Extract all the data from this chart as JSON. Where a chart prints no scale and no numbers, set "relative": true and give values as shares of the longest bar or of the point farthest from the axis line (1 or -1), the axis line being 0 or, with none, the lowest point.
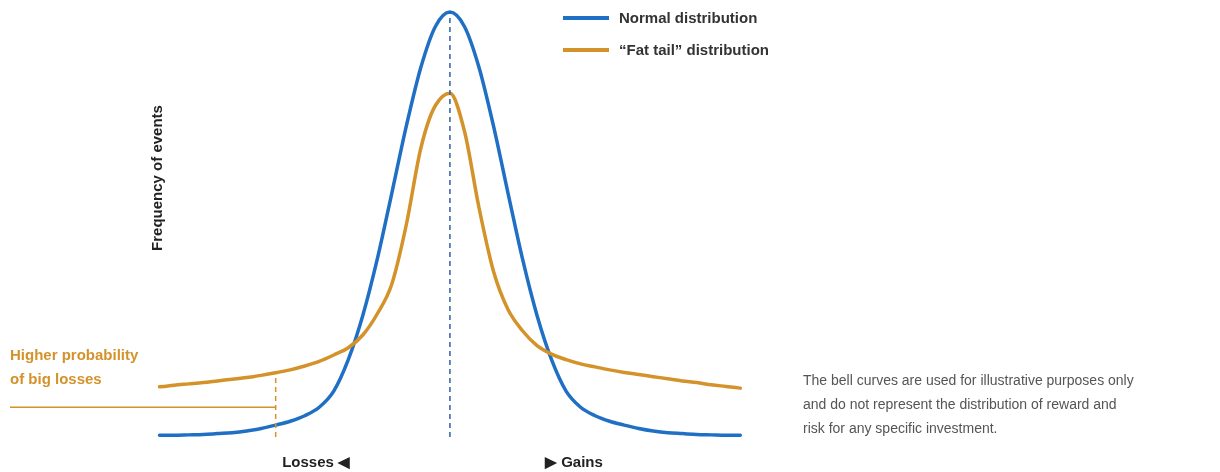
{
  "chart_data": {
    "type": "line",
    "relative": true,
    "ylabel": "Frequency of events",
    "categories": [
      null,
      null,
      null,
      null,
      null,
      null,
      null,
      null,
      null,
      null,
      null,
      null,
      null,
      null,
      null,
      null,
      null,
      null,
      null,
      null,
      null,
      null,
      null,
      null,
      null,
      null,
      null,
      null,
      null,
      null,
      null,
      null,
      null,
      null,
      null,
      null,
      null,
      null,
      null,
      null,
      null
    ],
    "series": [
      {
        "name": "Normal distribution",
        "color": "#1f6fc5",
        "values": [
          0.004,
          0.004,
          0.005,
          0.006,
          0.008,
          0.01,
          0.014,
          0.02,
          0.028,
          0.037,
          0.05,
          0.07,
          0.108,
          0.182,
          0.286,
          0.419,
          0.574,
          0.732,
          0.87,
          0.966,
          1,
          0.966,
          0.87,
          0.732,
          0.574,
          0.419,
          0.286,
          0.182,
          0.108,
          0.07,
          0.05,
          0.037,
          0.028,
          0.02,
          0.014,
          0.01,
          0.008,
          0.006,
          0.005,
          0.004,
          0.004
        ]
      },
      {
        "name": "“Fat tail” distribution",
        "color": "#d4922a",
        "values": [
          0.118,
          0.122,
          0.125,
          0.128,
          0.132,
          0.136,
          0.14,
          0.145,
          0.151,
          0.158,
          0.167,
          0.178,
          0.193,
          0.21,
          0.24,
          0.29,
          0.36,
          0.5,
          0.68,
          0.78,
          0.809,
          0.72,
          0.54,
          0.39,
          0.3,
          0.25,
          0.215,
          0.195,
          0.182,
          0.172,
          0.165,
          0.158,
          0.152,
          0.147,
          0.142,
          0.137,
          0.132,
          0.128,
          0.123,
          0.119,
          0.115
        ]
      }
    ],
    "ref_lines": [
      {
        "axis": "y",
        "value": 0.07,
        "color": "#d4922a",
        "line_style": "solid"
      }
    ],
    "legend": "top right",
    "annotations": [
      "Higher probability\nof big losses",
      "The bell curves are used for illustrative purposes only\nand do not represent the distribution of reward and\nrisk for any specific investment.",
      "Losses ◀",
      "▶ Gains"
    ]
  }
}
